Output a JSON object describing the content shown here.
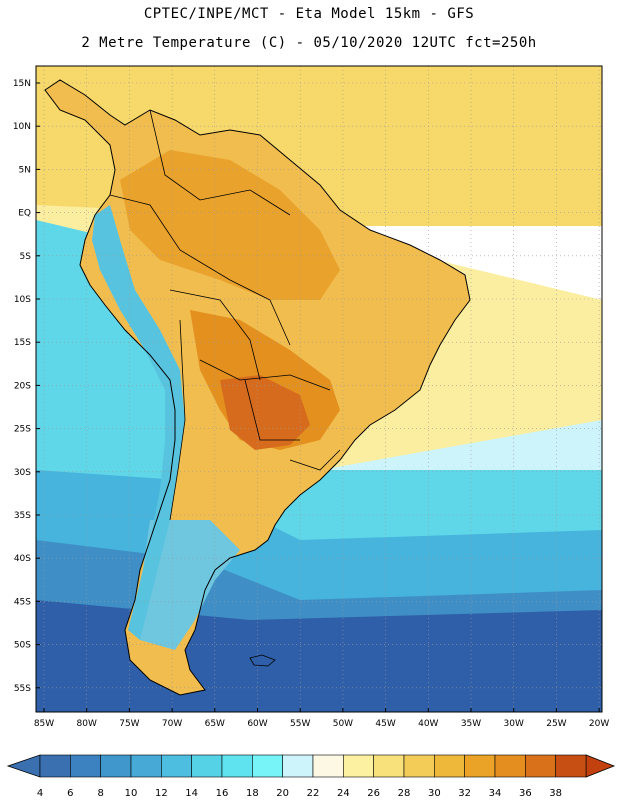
{
  "header": {
    "line1": "CPTEC/INPE/MCT -  Eta Model 15km - GFS",
    "line2": "2 Metre Temperature (C) - 05/10/2020 12UTC fct=250h"
  },
  "map": {
    "region": "South America",
    "lat_ticks": [
      "15N",
      "10N",
      "5N",
      "EQ",
      "5S",
      "10S",
      "15S",
      "20S",
      "25S",
      "30S",
      "35S",
      "40S",
      "45S",
      "50S",
      "55S"
    ],
    "lon_ticks": [
      "85W",
      "80W",
      "75W",
      "70W",
      "65W",
      "60W",
      "55W",
      "50W",
      "45W",
      "40W",
      "35W",
      "30W",
      "25W",
      "20W"
    ]
  },
  "colorbar": {
    "labels": [
      "4",
      "6",
      "8",
      "10",
      "12",
      "14",
      "16",
      "18",
      "20",
      "22",
      "24",
      "26",
      "28",
      "30",
      "32",
      "34",
      "36",
      "38"
    ],
    "colors": [
      "#3a6fb0",
      "#3c82c0",
      "#3f97cc",
      "#46a9d6",
      "#4dbedf",
      "#55d2e6",
      "#5fe4ef",
      "#76f4f8",
      "#cdf4fa",
      "#fdf8e4",
      "#fbf1a0",
      "#f8e07a",
      "#f3cc58",
      "#eeb83a",
      "#eaa326",
      "#e38e1e",
      "#d9711a",
      "#c84f13"
    ],
    "low_color": "#3a6fb0",
    "high_color": "#c2410f"
  },
  "palette": {
    "ocean_tropical": "#f7d86a",
    "ocean_mid": "#fbeea0",
    "ocean_cool": "#5fd7e8",
    "ocean_cold": "#3f8fc6",
    "ocean_polar": "#2f5fa8",
    "land_hot": "#e9a22c",
    "land_warm": "#f1bd4e",
    "land_very_hot": "#d66b1d",
    "andes": "#6fc7df"
  }
}
